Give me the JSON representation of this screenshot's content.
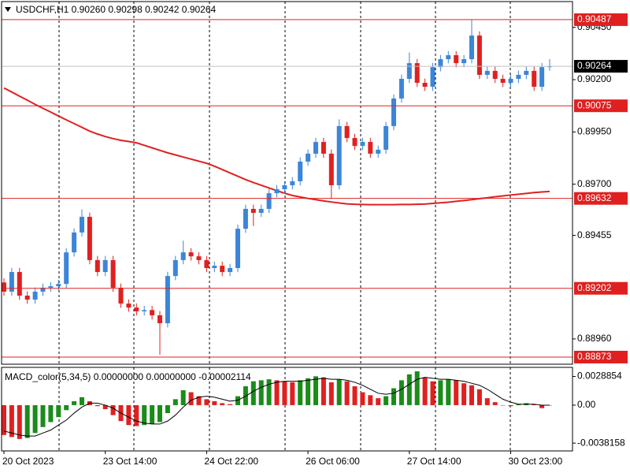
{
  "chart_data": [
    {
      "type": "candlestick",
      "title": "USDCHF,H1  0.90260 0.90298 0.90242 0.90264",
      "categories": [
        "20 Oct 2023",
        null,
        null,
        null,
        null,
        null,
        null,
        null,
        null,
        null,
        null,
        null,
        null,
        "23 Oct 14:00",
        null,
        null,
        null,
        null,
        null,
        null,
        null,
        null,
        null,
        null,
        null,
        null,
        "24 Oct 22:00",
        null,
        null,
        null,
        null,
        null,
        null,
        null,
        null,
        null,
        null,
        null,
        null,
        "26 Oct 06:00",
        null,
        null,
        null,
        null,
        null,
        null,
        null,
        null,
        null,
        null,
        null,
        null,
        "27 Oct 14:00",
        null,
        null,
        null,
        null,
        null,
        null,
        null,
        null,
        null,
        null,
        null,
        null,
        "30 Oct 23:00",
        null,
        null,
        null,
        null,
        null
      ],
      "open": [
        0.8923,
        0.89186,
        0.8928,
        0.89167,
        0.89148,
        0.89186,
        0.89205,
        0.89212,
        0.89223,
        0.89374,
        0.89469,
        0.89544,
        0.89337,
        0.8928,
        0.89337,
        0.89205,
        0.89129,
        0.8911,
        0.89092,
        0.89098,
        0.89073,
        0.89035,
        0.89261,
        0.89337,
        0.89374,
        0.89355,
        0.89337,
        0.89299,
        0.8931,
        0.8928,
        0.89299,
        0.89487,
        0.89582,
        0.89563,
        0.89582,
        0.89657,
        0.89676,
        0.89695,
        0.89714,
        0.89808,
        0.89846,
        0.89902,
        0.89846,
        0.89695,
        0.89978,
        0.89921,
        0.89883,
        0.89902,
        0.89846,
        0.89865,
        0.89978,
        0.9011,
        0.90204,
        0.90279,
        0.90185,
        0.90166,
        0.9026,
        0.90298,
        0.90317,
        0.90279,
        0.90298,
        0.90411,
        0.90223,
        0.90242,
        0.90204,
        0.90185,
        0.90204,
        0.90223,
        0.90242,
        0.90166,
        0.9026
      ],
      "high": [
        0.8925,
        0.893,
        0.893,
        0.89187,
        0.89206,
        0.89225,
        0.89232,
        0.89243,
        0.89394,
        0.89489,
        0.8958,
        0.89564,
        0.89357,
        0.89357,
        0.89357,
        0.89225,
        0.89149,
        0.8913,
        0.89118,
        0.89118,
        0.89093,
        0.89281,
        0.89357,
        0.8943,
        0.89394,
        0.89375,
        0.89357,
        0.8933,
        0.8933,
        0.89319,
        0.89507,
        0.89602,
        0.89602,
        0.89602,
        0.89677,
        0.89696,
        0.89715,
        0.89734,
        0.89828,
        0.89866,
        0.89922,
        0.89922,
        0.89866,
        0.9001,
        0.89998,
        0.89941,
        0.89922,
        0.89922,
        0.89885,
        0.89998,
        0.9013,
        0.90224,
        0.9033,
        0.90299,
        0.90205,
        0.9028,
        0.90318,
        0.90337,
        0.90337,
        0.90318,
        0.90487,
        0.90431,
        0.90262,
        0.90262,
        0.90224,
        0.90224,
        0.90243,
        0.90262,
        0.90262,
        0.9028,
        0.90298
      ],
      "low": [
        0.89166,
        0.89166,
        0.89147,
        0.89128,
        0.89128,
        0.89166,
        0.89185,
        0.89192,
        0.89203,
        0.89354,
        0.89449,
        0.89317,
        0.8926,
        0.8926,
        0.89185,
        0.89109,
        0.8909,
        0.89072,
        0.89072,
        0.89053,
        0.88884,
        0.89015,
        0.89241,
        0.89317,
        0.89335,
        0.89317,
        0.89279,
        0.89279,
        0.8926,
        0.8926,
        0.89279,
        0.89467,
        0.895,
        0.89543,
        0.89562,
        0.89637,
        0.89656,
        0.89675,
        0.89694,
        0.89788,
        0.89826,
        0.89826,
        0.8963,
        0.89675,
        0.89901,
        0.89863,
        0.89863,
        0.89826,
        0.89826,
        0.89845,
        0.89958,
        0.9009,
        0.90184,
        0.90165,
        0.90146,
        0.90146,
        0.9024,
        0.90278,
        0.90259,
        0.90259,
        0.90278,
        0.90203,
        0.90203,
        0.90184,
        0.90165,
        0.90165,
        0.90184,
        0.90203,
        0.90146,
        0.90146,
        0.90242
      ],
      "close": [
        0.89186,
        0.8928,
        0.89167,
        0.89148,
        0.89186,
        0.89205,
        0.89212,
        0.89223,
        0.89374,
        0.89469,
        0.89544,
        0.89337,
        0.8928,
        0.89337,
        0.89205,
        0.89129,
        0.8911,
        0.89092,
        0.89098,
        0.89073,
        0.89035,
        0.89261,
        0.89337,
        0.89374,
        0.89355,
        0.89337,
        0.89299,
        0.8931,
        0.8928,
        0.89299,
        0.89487,
        0.89582,
        0.89563,
        0.89582,
        0.89657,
        0.89676,
        0.89695,
        0.89714,
        0.89808,
        0.89846,
        0.89902,
        0.89846,
        0.89695,
        0.89978,
        0.89921,
        0.89883,
        0.89902,
        0.89846,
        0.89865,
        0.89978,
        0.9011,
        0.90204,
        0.90279,
        0.90185,
        0.90166,
        0.9026,
        0.90298,
        0.90317,
        0.90279,
        0.90298,
        0.90411,
        0.90223,
        0.90242,
        0.90204,
        0.90185,
        0.90204,
        0.90223,
        0.90242,
        0.90166,
        0.9026,
        0.90264
      ],
      "up_color": "#3d85d8",
      "down_color": "#e02020",
      "ma": {
        "color": "#e02020",
        "values": [
          0.9016,
          0.90141,
          0.90121,
          0.90102,
          0.90082,
          0.90063,
          0.90045,
          0.90026,
          0.90008,
          0.8999,
          0.89972,
          0.89954,
          0.8994,
          0.89928,
          0.89918,
          0.8991,
          0.89904,
          0.89898,
          0.89886,
          0.89874,
          0.89862,
          0.8985,
          0.8984,
          0.8983,
          0.8982,
          0.8981,
          0.898,
          0.89786,
          0.8977,
          0.89754,
          0.89738,
          0.89722,
          0.89708,
          0.89695,
          0.89682,
          0.89669,
          0.89657,
          0.89646,
          0.89639,
          0.89632,
          0.89626,
          0.8962,
          0.89615,
          0.8961,
          0.89606,
          0.89604,
          0.89603,
          0.89602,
          0.89602,
          0.89602,
          0.89602,
          0.89603,
          0.89603,
          0.89604,
          0.89605,
          0.89608,
          0.89611,
          0.89614,
          0.89618,
          0.89622,
          0.89626,
          0.89631,
          0.89635,
          0.8964,
          0.89644,
          0.89648,
          0.89652,
          0.89656,
          0.8966,
          0.89663,
          0.89665
        ]
      },
      "ylim": [
        0.88839,
        0.90581
      ],
      "yticks": [
        {
          "value": 0.9045,
          "label": "0.90450"
        },
        {
          "value": 0.902,
          "label": "0.90200"
        },
        {
          "value": 0.8995,
          "label": "0.89950"
        },
        {
          "value": 0.897,
          "label": "0.89700"
        },
        0.89455,
        {
          "value": 0.8896,
          "label": "0.88960"
        }
      ],
      "levels": [
        0.90487,
        0.90075,
        0.89632,
        0.89202,
        0.88873
      ],
      "level_color": "#e02020",
      "current": 0.90264
    },
    {
      "type": "macd",
      "title": "MACD_color(5,34,5) 0.00000000 0.00000000 -0.00002114",
      "values": [
        -0.003,
        -0.0032,
        -0.0034,
        -0.0033,
        -0.0028,
        -0.0022,
        -0.0017,
        -0.0012,
        -0.0005,
        0.0004,
        0.0008,
        0.0004,
        -0.0001,
        -0.0004,
        -0.001,
        -0.0016,
        -0.002,
        -0.0021,
        -0.002,
        -0.0019,
        -0.0017,
        -0.0008,
        0.0006,
        0.0015,
        0.0013,
        0.0009,
        0.0006,
        0.0004,
        0.0002,
        0.0001,
        0.0009,
        0.0019,
        0.0024,
        0.0025,
        0.0026,
        0.0025,
        0.0024,
        0.0023,
        0.0025,
        0.0027,
        0.0029,
        0.0028,
        0.0023,
        0.0026,
        0.0024,
        0.0019,
        0.0013,
        0.001,
        0.0007,
        0.0009,
        0.0017,
        0.0025,
        0.0031,
        0.0034,
        0.0028,
        0.0024,
        0.0025,
        0.0026,
        0.0025,
        0.0022,
        0.002,
        0.0016,
        0.0007,
        0.0003,
        0.0,
        -0.0001,
        0.0001,
        0.0002,
        0.0001,
        -0.0003,
        -2.114e-05
      ],
      "signal": {
        "color": "#000000",
        "values": [
          -0.0026,
          -0.0028,
          -0.003,
          -0.0031,
          -0.0031,
          -0.0028,
          -0.0025,
          -0.002,
          -0.0015,
          -0.0008,
          -0.0002,
          0.0002,
          0.0002,
          0,
          -0.0003,
          -0.0008,
          -0.0012,
          -0.0016,
          -0.0018,
          -0.0019,
          -0.0019,
          -0.0016,
          -0.001,
          -0.0002,
          0.0005,
          0.0008,
          0.0009,
          0.0008,
          0.0006,
          0.0004,
          0.0005,
          0.0009,
          0.0014,
          0.0018,
          0.0021,
          0.0023,
          0.0024,
          0.0024,
          0.0024,
          0.0025,
          0.0026,
          0.0027,
          0.0026,
          0.0026,
          0.0025,
          0.0023,
          0.002,
          0.0016,
          0.0012,
          0.0011,
          0.0012,
          0.0016,
          0.0021,
          0.0026,
          0.0028,
          0.0027,
          0.0026,
          0.0026,
          0.0025,
          0.0024,
          0.0022,
          0.002,
          0.0016,
          0.0011,
          0.0006,
          0.0003,
          0.0001,
          0.0001,
          0.0001,
          0,
          0
        ]
      },
      "up_color": "#1a8c1a",
      "down_color": "#e02020",
      "ylim": [
        -0.0046,
        0.0038
      ],
      "yticks": [
        0.0028854,
        {
          "value": 0,
          "label": "0.00"
        },
        -0.0038158
      ]
    }
  ]
}
